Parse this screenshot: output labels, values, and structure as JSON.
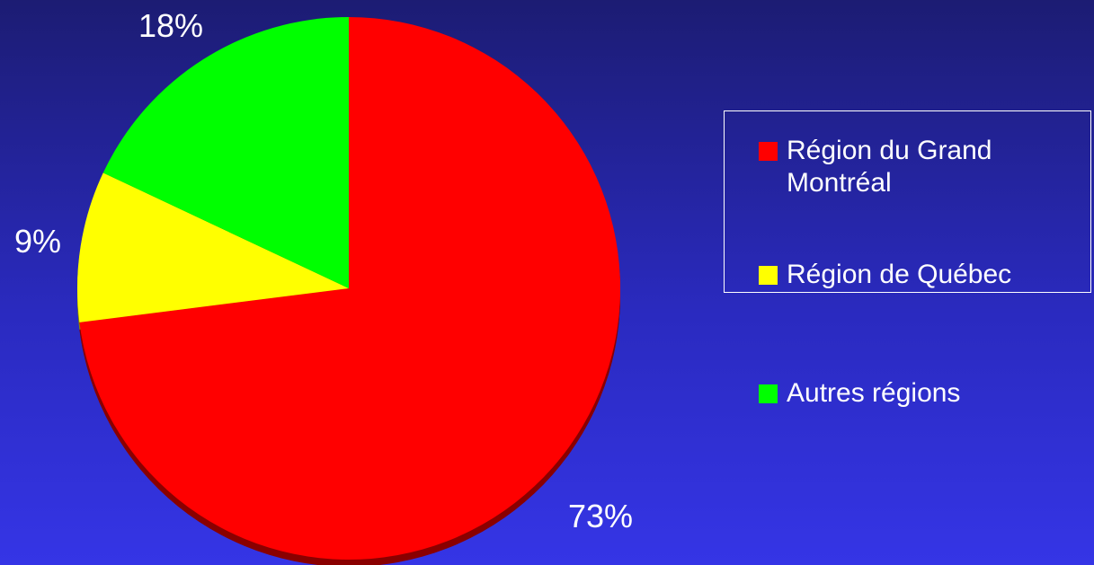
{
  "chart_data": {
    "type": "pie",
    "slices": [
      {
        "label": "Région du Grand Montréal",
        "value": 73,
        "value_label": "73%",
        "color": "#ff0000",
        "shadow_color": "#8a0000"
      },
      {
        "label": "Région de Québec",
        "value": 9,
        "value_label": "9%",
        "color": "#ffff00",
        "shadow_color": "#8a8a00"
      },
      {
        "label": "Autres régions",
        "value": 18,
        "value_label": "18%",
        "color": "#00ff00",
        "shadow_color": "#008a00"
      }
    ],
    "legend_position": "right",
    "start": "top, clockwise",
    "style": "3d-tilted"
  }
}
